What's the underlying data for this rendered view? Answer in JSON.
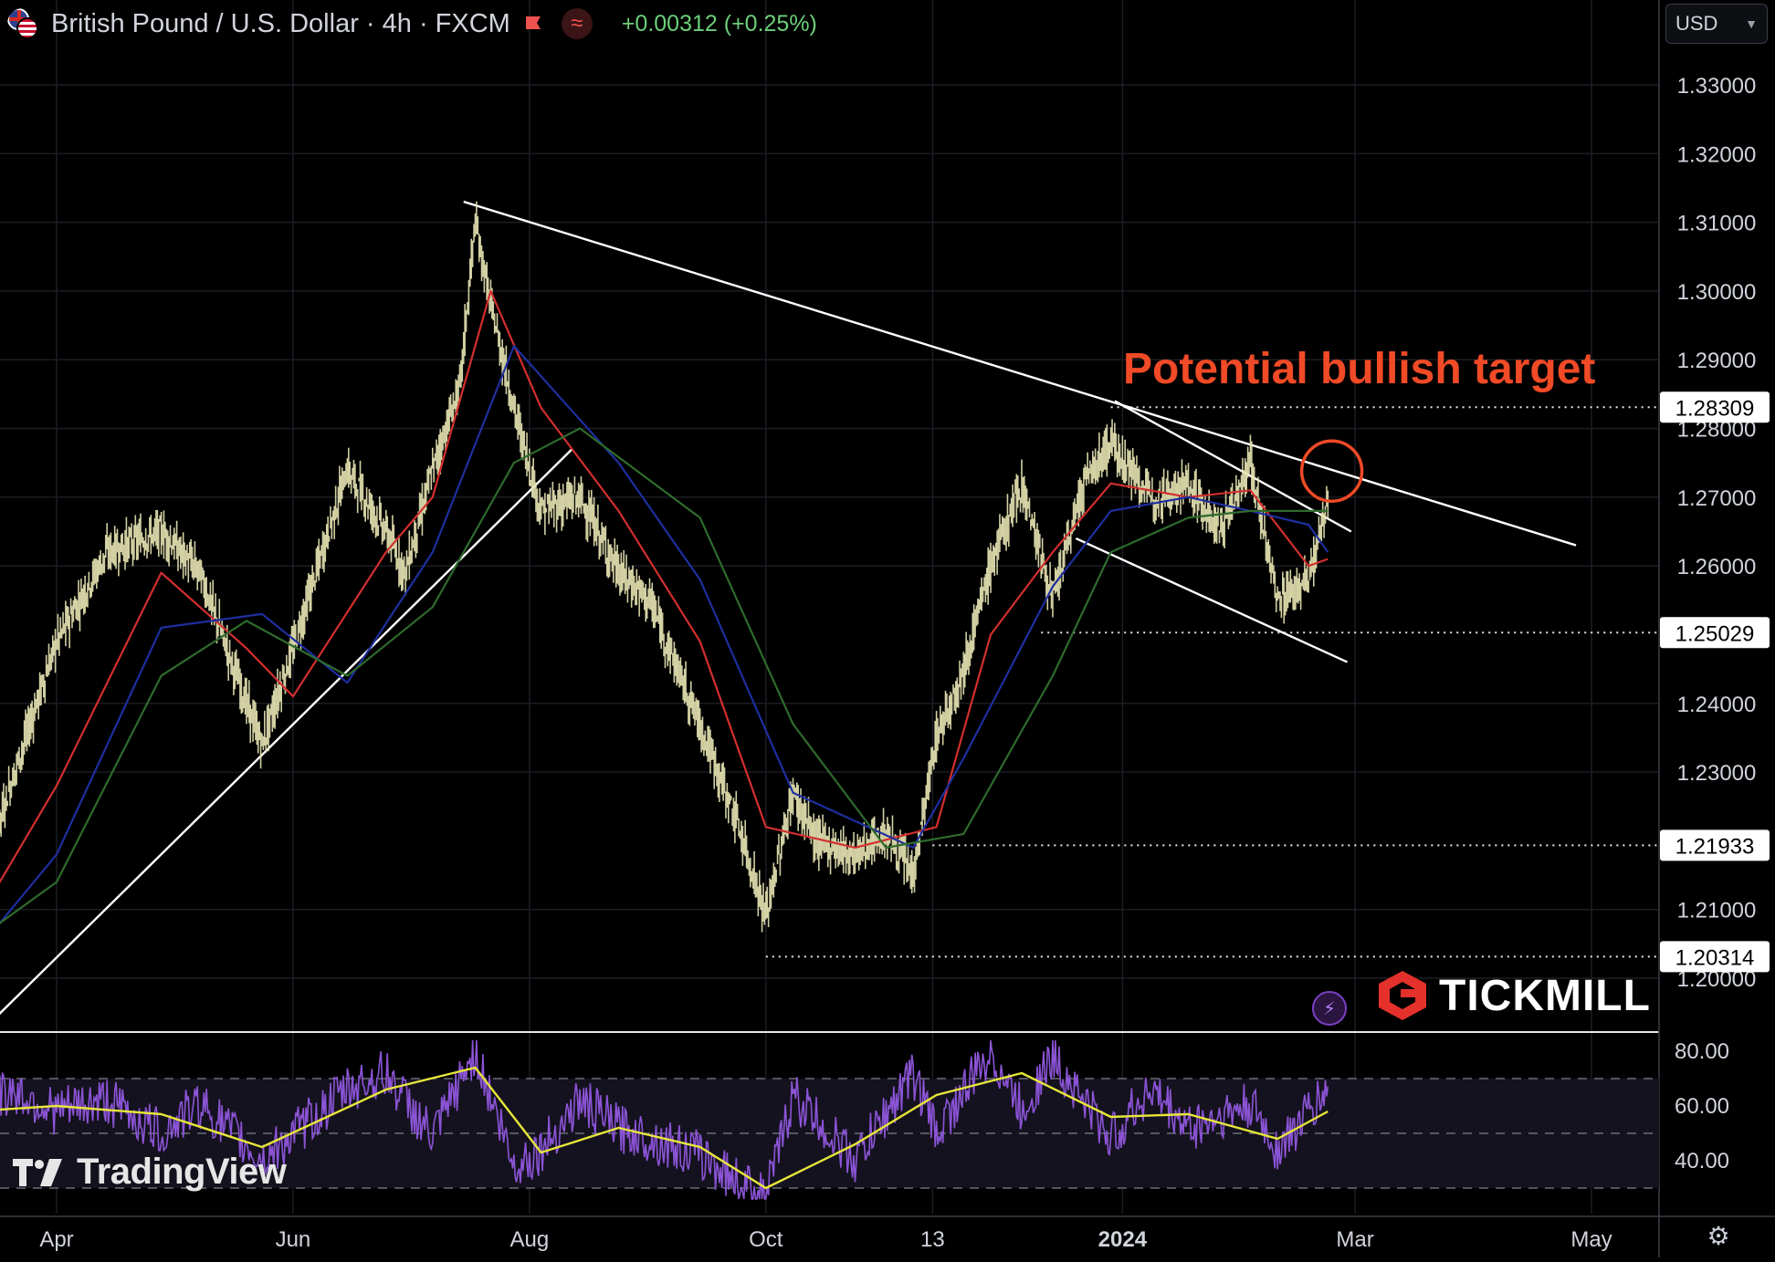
{
  "header": {
    "symbol_title": "British Pound / U.S. Dollar · 4h · FXCM",
    "change_text": "+0.00312 (+0.25%)",
    "approx_glyph": "≈",
    "currency": "USD"
  },
  "icons": {
    "symbol_flag": "gb-us-flag-icon",
    "alert_flag": "flag-icon",
    "indicator": "approx-icon",
    "currency_dropdown": "chevron-down-icon",
    "quick_action": "lightning-bolt-icon",
    "settings": "gear-icon"
  },
  "colors": {
    "background": "#000000",
    "candles": "#e8e6b4",
    "ma_fast": "#d32f2f",
    "ma_mid": "#1e2f9e",
    "ma_slow": "#2e6b2b",
    "trendline": "#ffffff",
    "annotation": "#f04a26",
    "oscillator": "#8b54d6",
    "oscillator_signal": "#e7e63a",
    "change_positive": "#6ccf7a"
  },
  "brands": {
    "tradingview": "TradingView",
    "tickmill": "TICKMILL"
  },
  "chart_data": [
    {
      "type": "line",
      "title": "British Pound / U.S. Dollar · 4h · FXCM",
      "xlabel": "",
      "ylabel": "",
      "ylim": [
        1.193,
        1.337
      ],
      "yticks": [
        1.2,
        1.21,
        1.23,
        1.24,
        1.26,
        1.27,
        1.28,
        1.29,
        1.3,
        1.31,
        1.32,
        1.33
      ],
      "ytick_labels": [
        "1.20000",
        "1.21000",
        "1.23000",
        "1.24000",
        "1.26000",
        "1.27000",
        "1.28000",
        "1.29000",
        "1.30000",
        "1.31000",
        "1.32000",
        "1.33000"
      ],
      "x_range": [
        "2023-03-10",
        "2024-05-31"
      ],
      "xticks": [
        "2023-04-01",
        "2023-06-01",
        "2023-08-01",
        "2023-10-01",
        "2023-11-13",
        "2024-01-01",
        "2024-03-01",
        "2024-05-01"
      ],
      "xtick_labels": [
        "Apr",
        "Jun",
        "Aug",
        "Oct",
        "13",
        "2024",
        "Mar",
        "May"
      ],
      "grid": true,
      "series": [
        {
          "style": "candles",
          "x": [
            "2023-03-10",
            "2023-03-20",
            "2023-04-01",
            "2023-04-14",
            "2023-04-28",
            "2023-05-08",
            "2023-05-20",
            "2023-05-24",
            "2023-06-01",
            "2023-06-15",
            "2023-06-25",
            "2023-06-30",
            "2023-07-07",
            "2023-07-14",
            "2023-07-18",
            "2023-07-22",
            "2023-07-28",
            "2023-08-04",
            "2023-08-14",
            "2023-08-24",
            "2023-09-01",
            "2023-09-14",
            "2023-09-24",
            "2023-10-01",
            "2023-10-08",
            "2023-10-14",
            "2023-10-24",
            "2023-11-01",
            "2023-11-08",
            "2023-11-14",
            "2023-11-21",
            "2023-11-28",
            "2023-12-06",
            "2023-12-14",
            "2023-12-22",
            "2023-12-29",
            "2024-01-08",
            "2024-01-18",
            "2024-01-26",
            "2024-02-03",
            "2024-02-10",
            "2024-02-18",
            "2024-02-23"
          ],
          "values": [
            1.209,
            1.228,
            1.249,
            1.262,
            1.265,
            1.259,
            1.24,
            1.234,
            1.248,
            1.274,
            1.265,
            1.259,
            1.274,
            1.286,
            1.31,
            1.298,
            1.283,
            1.268,
            1.27,
            1.259,
            1.255,
            1.237,
            1.222,
            1.209,
            1.227,
            1.22,
            1.218,
            1.221,
            1.215,
            1.235,
            1.245,
            1.26,
            1.272,
            1.255,
            1.272,
            1.278,
            1.27,
            1.272,
            1.265,
            1.275,
            1.255,
            1.258,
            1.269
          ]
        },
        {
          "name": "",
          "color": "#d32f2f",
          "x": [
            "2023-03-10",
            "2023-04-01",
            "2023-04-28",
            "2023-05-20",
            "2023-06-01",
            "2023-06-25",
            "2023-07-07",
            "2023-07-22",
            "2023-08-04",
            "2023-08-24",
            "2023-09-14",
            "2023-10-01",
            "2023-10-24",
            "2023-11-14",
            "2023-11-28",
            "2023-12-14",
            "2023-12-29",
            "2024-01-18",
            "2024-02-03",
            "2024-02-18",
            "2024-02-23"
          ],
          "values": [
            1.207,
            1.228,
            1.259,
            1.248,
            1.241,
            1.262,
            1.27,
            1.3,
            1.283,
            1.268,
            1.249,
            1.222,
            1.219,
            1.222,
            1.25,
            1.262,
            1.272,
            1.27,
            1.271,
            1.26,
            1.261
          ]
        },
        {
          "name": "",
          "color": "#1e2f9e",
          "x": [
            "2023-03-10",
            "2023-04-01",
            "2023-04-28",
            "2023-05-24",
            "2023-06-15",
            "2023-07-07",
            "2023-07-28",
            "2023-08-24",
            "2023-09-14",
            "2023-10-08",
            "2023-11-08",
            "2023-11-21",
            "2023-12-14",
            "2023-12-29",
            "2024-01-18",
            "2024-02-03",
            "2024-02-18",
            "2024-02-23"
          ],
          "values": [
            1.203,
            1.218,
            1.251,
            1.253,
            1.243,
            1.262,
            1.292,
            1.275,
            1.258,
            1.227,
            1.219,
            1.232,
            1.257,
            1.268,
            1.27,
            1.268,
            1.266,
            1.262
          ]
        },
        {
          "name": "",
          "color": "#2e6b2b",
          "x": [
            "2023-03-10",
            "2023-04-01",
            "2023-04-28",
            "2023-05-20",
            "2023-06-15",
            "2023-07-07",
            "2023-07-28",
            "2023-08-14",
            "2023-09-14",
            "2023-10-08",
            "2023-11-01",
            "2023-11-21",
            "2023-12-14",
            "2023-12-29",
            "2024-01-18",
            "2024-02-03",
            "2024-02-18",
            "2024-02-23"
          ],
          "values": [
            1.205,
            1.214,
            1.244,
            1.252,
            1.244,
            1.254,
            1.275,
            1.28,
            1.267,
            1.237,
            1.219,
            1.221,
            1.244,
            1.262,
            1.267,
            1.268,
            1.268,
            1.268
          ]
        }
      ],
      "trendlines": [
        {
          "from": [
            "2023-03-14",
            1.193
          ],
          "to": [
            "2023-08-12",
            1.277
          ]
        },
        {
          "from": [
            "2023-07-15",
            1.313
          ],
          "to": [
            "2024-04-27",
            1.263
          ]
        },
        {
          "from": [
            "2023-12-30",
            1.284
          ],
          "to": [
            "2024-02-29",
            1.265
          ]
        },
        {
          "from": [
            "2023-12-20",
            1.264
          ],
          "to": [
            "2024-02-28",
            1.246
          ]
        }
      ],
      "horizontal_levels": [
        {
          "value": 1.28309,
          "label": "1.28309",
          "from": "2023-12-29"
        },
        {
          "value": 1.25029,
          "label": "1.25029",
          "from": "2023-12-11"
        },
        {
          "value": 1.21933,
          "label": "1.21933",
          "from": "2023-11-13"
        },
        {
          "value": 1.20314,
          "label": "1.20314",
          "from": "2023-10-01"
        }
      ],
      "annotations": [
        {
          "text": "Potential bullish target",
          "color": "#f04a26"
        }
      ],
      "target_marker": {
        "x": "2024-02-24",
        "y": 1.2738
      }
    },
    {
      "type": "line",
      "title": "",
      "ylim": [
        22,
        88
      ],
      "yticks": [
        40,
        60,
        80
      ],
      "ytick_labels": [
        "40.00",
        "60.00",
        "80.00"
      ],
      "band": [
        30,
        70
      ],
      "grid": true,
      "series": [
        {
          "name": "",
          "color": "#8b54d6",
          "x": [
            "2023-03-10",
            "2023-03-20",
            "2023-04-01",
            "2023-04-14",
            "2023-04-28",
            "2023-05-08",
            "2023-05-24",
            "2023-06-15",
            "2023-06-25",
            "2023-07-07",
            "2023-07-18",
            "2023-07-28",
            "2023-08-04",
            "2023-08-14",
            "2023-08-24",
            "2023-09-14",
            "2023-10-01",
            "2023-10-08",
            "2023-10-24",
            "2023-11-08",
            "2023-11-14",
            "2023-11-28",
            "2023-12-06",
            "2023-12-14",
            "2023-12-29",
            "2024-01-08",
            "2024-01-18",
            "2024-02-03",
            "2024-02-10",
            "2024-02-23"
          ],
          "values": [
            55,
            66,
            58,
            62,
            50,
            61,
            40,
            66,
            72,
            48,
            80,
            38,
            44,
            62,
            52,
            42,
            26,
            64,
            40,
            72,
            50,
            80,
            58,
            78,
            48,
            66,
            52,
            60,
            44,
            66
          ]
        },
        {
          "name": "",
          "color": "#e7e63a",
          "x": [
            "2023-03-10",
            "2023-04-01",
            "2023-04-28",
            "2023-05-24",
            "2023-06-25",
            "2023-07-18",
            "2023-08-04",
            "2023-08-24",
            "2023-09-14",
            "2023-10-01",
            "2023-10-24",
            "2023-11-14",
            "2023-12-06",
            "2023-12-29",
            "2024-01-18",
            "2024-02-10",
            "2024-02-23"
          ],
          "values": [
            58,
            60,
            57,
            45,
            66,
            74,
            43,
            52,
            45,
            30,
            46,
            64,
            72,
            56,
            57,
            48,
            58
          ]
        }
      ]
    }
  ]
}
